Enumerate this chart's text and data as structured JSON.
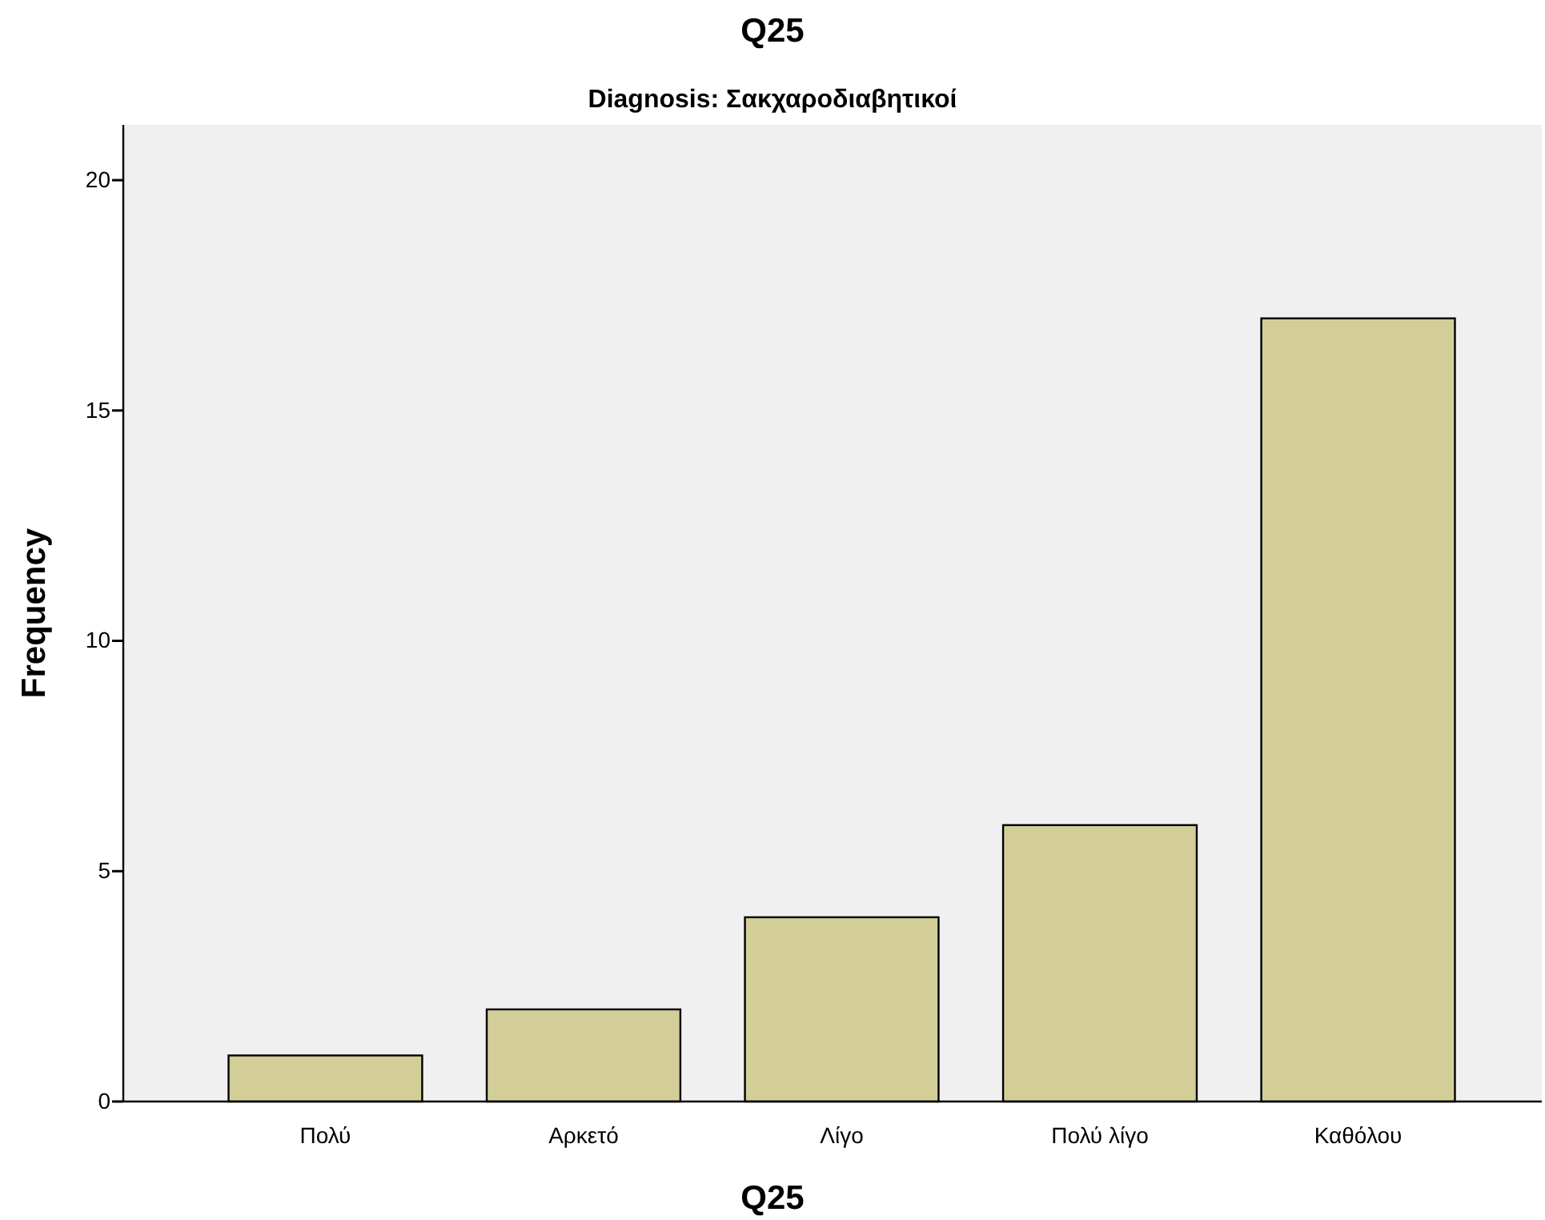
{
  "chart_data": {
    "type": "bar",
    "title": "Q25",
    "subtitle": "Diagnosis: Σακχαροδιαβητικοί",
    "xlabel": "Q25",
    "ylabel": "Frequency",
    "categories": [
      "Πολύ",
      "Αρκετό",
      "Λίγο",
      "Πολύ λίγο",
      "Καθόλου"
    ],
    "values": [
      1,
      2,
      4,
      6,
      17
    ],
    "color": "#d3ce97",
    "ylim": [
      0,
      21.2
    ],
    "yticks": [
      0,
      5,
      10,
      15,
      20
    ],
    "grid": false
  }
}
